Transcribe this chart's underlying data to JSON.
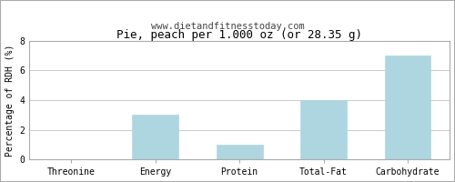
{
  "title": "Pie, peach per 1.000 oz (or 28.35 g)",
  "subtitle": "www.dietandfitnesstoday.com",
  "categories": [
    "Threonine",
    "Energy",
    "Protein",
    "Total-Fat",
    "Carbohydrate"
  ],
  "values": [
    0,
    3,
    1,
    4,
    7
  ],
  "bar_color": "#aed6e0",
  "bar_edge_color": "#aed6e0",
  "ylabel": "Percentage of RDH (%)",
  "ylim": [
    0,
    8
  ],
  "yticks": [
    0,
    2,
    4,
    6,
    8
  ],
  "background_color": "#ffffff",
  "plot_bg_color": "#ffffff",
  "grid_color": "#cccccc",
  "border_color": "#aaaaaa",
  "title_fontsize": 9,
  "subtitle_fontsize": 7.5,
  "label_fontsize": 7,
  "ylabel_fontsize": 7,
  "tick_fontsize": 7
}
